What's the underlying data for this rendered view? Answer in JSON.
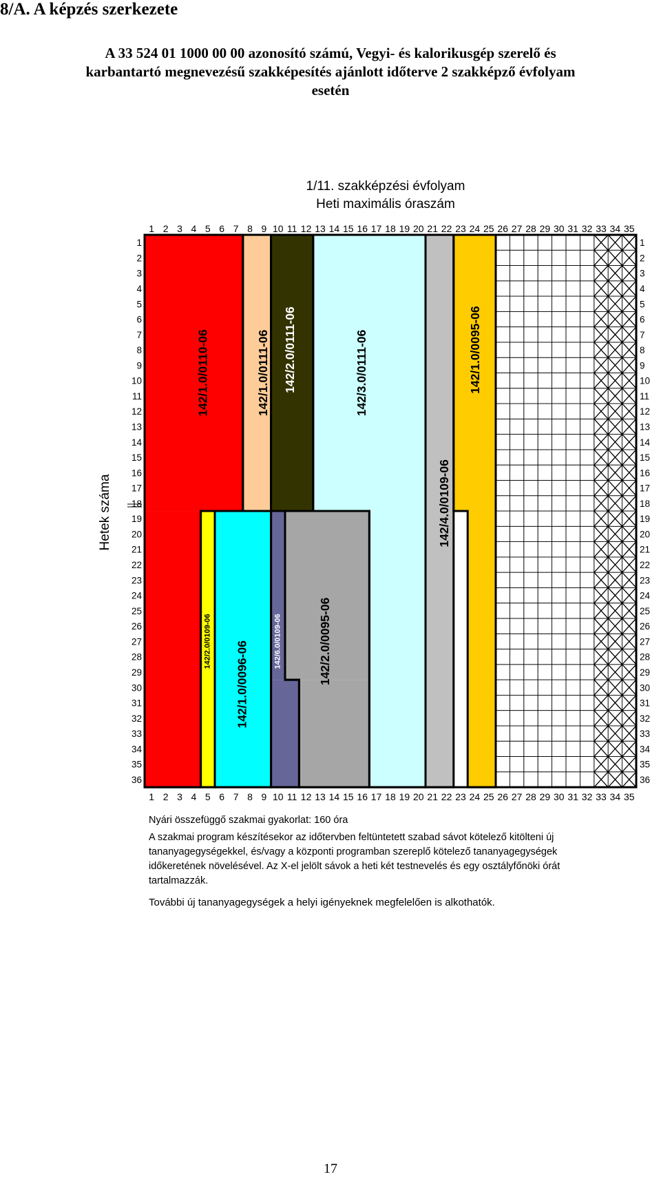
{
  "heading": "8/A. A képzés szerkezete",
  "document_title": "A 33 524 01 1000 00 00 azonosító számú, Vegyi- és kalorikusgép szerelő és karbantartó megnevezésű szakképesítés ajánlott időterve 2 szakképző évfolyam esetén",
  "chart": {
    "title_line1": "1/11. szakképzési évfolyam",
    "title_line2": "Heti maximális óraszám",
    "y_axis_label": "Hetek száma"
  },
  "chart_data": {
    "type": "table",
    "x_ticks": [
      "1",
      "2",
      "3",
      "4",
      "5",
      "6",
      "7",
      "8",
      "9",
      "10",
      "11",
      "12",
      "13",
      "14",
      "15",
      "16",
      "17",
      "18",
      "19",
      "20",
      "21",
      "22",
      "23",
      "24",
      "25",
      "26",
      "27",
      "28",
      "29",
      "30",
      "31",
      "32",
      "33",
      "34",
      "35"
    ],
    "y_ticks": [
      "1",
      "2",
      "3",
      "4",
      "5",
      "6",
      "7",
      "8",
      "9",
      "10",
      "11",
      "12",
      "13",
      "14",
      "15",
      "16",
      "17",
      "18",
      "19",
      "20",
      "21",
      "22",
      "23",
      "24",
      "25",
      "26",
      "27",
      "28",
      "29",
      "30",
      "31",
      "32",
      "33",
      "34",
      "35",
      "36"
    ],
    "blocks": [
      {
        "label": "142/1.0/0110-06",
        "color": "#ff0000",
        "hours_from": 1,
        "hours_to": 7,
        "weeks_from": 1,
        "weeks_to": 18
      },
      {
        "label": "142/1.0/0110-06",
        "color": "#ff0000",
        "hours_from": 1,
        "hours_to": 4,
        "weeks_from": 19,
        "weeks_to": 36
      },
      {
        "label": "142/1.0/0111-06",
        "color": "#ffcc99",
        "hours_from": 8,
        "hours_to": 9,
        "weeks_from": 1,
        "weeks_to": 18
      },
      {
        "label": "142/2.0/0111-06",
        "color": "#333300",
        "hours_from": 10,
        "hours_to": 12,
        "weeks_from": 1,
        "weeks_to": 18
      },
      {
        "label": "142/3.0/0111-06",
        "color": "#ccffff",
        "hours_from": 13,
        "hours_to": 20,
        "weeks_from": 1,
        "weeks_to": 18
      },
      {
        "label": "142/3.0/0111-06",
        "color": "#ccffff",
        "hours_from": 17,
        "hours_to": 20,
        "weeks_from": 19,
        "weeks_to": 36
      },
      {
        "label": "142/4.0/0109-06",
        "color": "#c0c0c0",
        "hours_from": 21,
        "hours_to": 22,
        "weeks_from": 1,
        "weeks_to": 36
      },
      {
        "label": "142/1.0/0095-06",
        "color": "#ffcc00",
        "hours_from": 23,
        "hours_to": 25,
        "weeks_from": 1,
        "weeks_to": 18
      },
      {
        "label": "142/1.0/0095-06",
        "color": "#ffcc00",
        "hours_from": 24,
        "hours_to": 25,
        "weeks_from": 19,
        "weeks_to": 36
      },
      {
        "label": "142/2.0/0109-06",
        "color": "#ffff00",
        "hours_from": 5,
        "hours_to": 5,
        "weeks_from": 19,
        "weeks_to": 36
      },
      {
        "label": "142/1.0/0096-06",
        "color": "#00ffff",
        "hours_from": 6,
        "hours_to": 9,
        "weeks_from": 19,
        "weeks_to": 36
      },
      {
        "label": "142/6.0/0109-06",
        "color": "#666699",
        "hours_from": 10,
        "hours_to": 10,
        "weeks_from": 19,
        "weeks_to": 29
      },
      {
        "label": "142/6.0/0109-06",
        "color": "#666699",
        "hours_from": 10,
        "hours_to": 11,
        "weeks_from": 30,
        "weeks_to": 36
      },
      {
        "label": "142/2.0/0095-06",
        "color": "#a6a6a6",
        "hours_from": 11,
        "hours_to": 16,
        "weeks_from": 19,
        "weeks_to": 29
      },
      {
        "label": "142/2.0/0095-06",
        "color": "#a6a6a6",
        "hours_from": 12,
        "hours_to": 16,
        "weeks_from": 30,
        "weeks_to": 36
      }
    ],
    "free_band": {
      "hours_from": 26,
      "hours_to": 32,
      "weeks_from": 1,
      "weeks_to": 36,
      "fill": "grid"
    },
    "x_marked_band": {
      "hours_from": 33,
      "hours_to": 35,
      "weeks_from": 1,
      "weeks_to": 36,
      "fill": "X"
    },
    "block_labels": [
      {
        "text": "142/1.0/0110-06",
        "color": "#000000"
      },
      {
        "text": "142/1.0/0111-06",
        "color": "#000000"
      },
      {
        "text": "142/2.0/0111-06",
        "color": "#ffffff"
      },
      {
        "text": "142/3.0/0111-06",
        "color": "#000000"
      },
      {
        "text": "142/1.0/0095-06",
        "color": "#000000"
      },
      {
        "text": "142/4.0/0109-06",
        "color": "#000000"
      },
      {
        "text": "142/2.0/0095-06",
        "color": "#000000"
      },
      {
        "text": "142/1.0/0096-06",
        "color": "#000000"
      },
      {
        "text": "142/2.0/0109-06",
        "color": "#000000"
      },
      {
        "text": "142/6.0/0109-06",
        "color": "#ffffff"
      }
    ]
  },
  "notes": {
    "summer_practice": "Nyári összefüggő szakmai gyakorlat: 160 óra",
    "paragraph": "A szakmai program készítésekor az időtervben feltüntetett szabad sávot kötelező kitölteni új tananyagegységekkel, és/vagy a központi programban szereplő kötelező tananyagegységek időkeretének növelésével. Az X-el jelölt sávok a heti két testnevelés és egy osztályfőnöki órát tartalmazzák.",
    "more": "További új tananyagegységek a helyi igényeknek megfelelően is alkothatók."
  },
  "page_number": "17"
}
